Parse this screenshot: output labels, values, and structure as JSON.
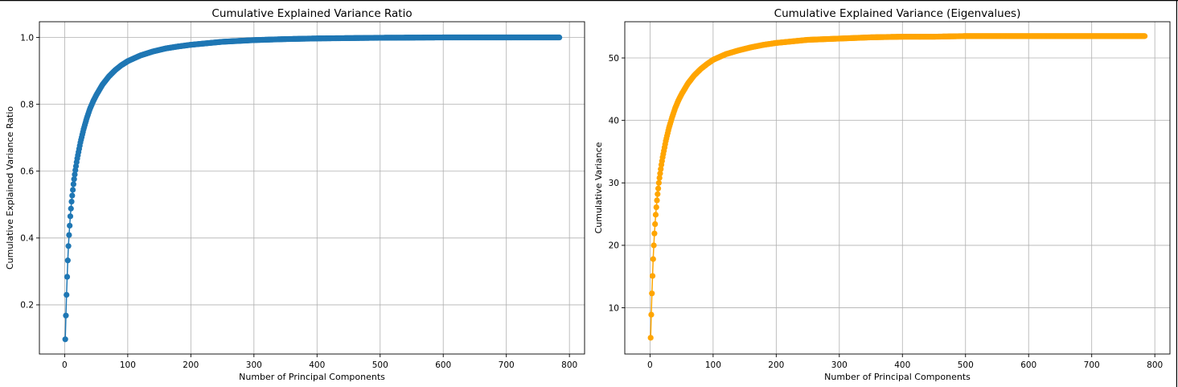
{
  "chart_data": [
    {
      "type": "line",
      "title": "Cumulative Explained Variance Ratio",
      "xlabel": "Number of Principal Components",
      "ylabel": "Cumulative Explained Variance Ratio",
      "xlim": [
        -40,
        824
      ],
      "ylim": [
        0.053,
        1.047
      ],
      "xticks": [
        0,
        100,
        200,
        300,
        400,
        500,
        600,
        700,
        800
      ],
      "yticks": [
        0.2,
        0.4,
        0.6,
        0.8,
        1.0
      ],
      "ytick_labels": [
        "0.2",
        "0.4",
        "0.6",
        "0.8",
        "1.0"
      ],
      "grid": true,
      "marker": "circle",
      "color": "#1f77b4",
      "n_components": 784,
      "series": [
        {
          "x": [
            1,
            2,
            3,
            4,
            5,
            6,
            7,
            8,
            9,
            10,
            11,
            12,
            13,
            14,
            15,
            16,
            17,
            18,
            19,
            20,
            25,
            30,
            35,
            40,
            45,
            50,
            60,
            70,
            80,
            90,
            100,
            120,
            140,
            160,
            180,
            200,
            250,
            300,
            350,
            400,
            450,
            500,
            600,
            700,
            784
          ],
          "y": [
            0.097,
            0.168,
            0.23,
            0.284,
            0.333,
            0.376,
            0.409,
            0.437,
            0.465,
            0.488,
            0.509,
            0.527,
            0.544,
            0.561,
            0.576,
            0.59,
            0.603,
            0.615,
            0.627,
            0.638,
            0.686,
            0.725,
            0.758,
            0.786,
            0.808,
            0.827,
            0.859,
            0.883,
            0.902,
            0.917,
            0.929,
            0.946,
            0.958,
            0.967,
            0.973,
            0.978,
            0.987,
            0.992,
            0.995,
            0.997,
            0.998,
            0.999,
            1.0,
            1.0,
            1.0
          ]
        }
      ]
    },
    {
      "type": "line",
      "title": "Cumulative Explained Variance (Eigenvalues)",
      "xlabel": "Number of Principal Components",
      "ylabel": "Cumulative Variance",
      "xlim": [
        -40,
        824
      ],
      "ylim": [
        2.6,
        55.8
      ],
      "xticks": [
        0,
        100,
        200,
        300,
        400,
        500,
        600,
        700,
        800
      ],
      "yticks": [
        10,
        20,
        30,
        40,
        50
      ],
      "ytick_labels": [
        "10",
        "20",
        "30",
        "40",
        "50"
      ],
      "grid": true,
      "marker": "circle",
      "color": "#ffa500",
      "n_components": 784,
      "series": [
        {
          "x": [
            1,
            2,
            3,
            4,
            5,
            6,
            7,
            8,
            9,
            10,
            11,
            12,
            13,
            14,
            15,
            16,
            17,
            18,
            19,
            20,
            25,
            30,
            35,
            40,
            45,
            50,
            60,
            70,
            80,
            90,
            100,
            120,
            140,
            160,
            180,
            200,
            250,
            300,
            350,
            400,
            450,
            500,
            600,
            700,
            784
          ],
          "y": [
            5.2,
            8.9,
            12.3,
            15.1,
            17.8,
            20.0,
            21.9,
            23.4,
            24.9,
            26.1,
            27.2,
            28.2,
            29.1,
            30.0,
            30.8,
            31.5,
            32.2,
            32.9,
            33.5,
            34.1,
            36.7,
            38.8,
            40.5,
            42.0,
            43.2,
            44.2,
            45.9,
            47.2,
            48.2,
            49.0,
            49.7,
            50.6,
            51.2,
            51.7,
            52.1,
            52.4,
            52.9,
            53.1,
            53.3,
            53.4,
            53.4,
            53.5,
            53.5,
            53.5,
            53.5
          ]
        }
      ]
    }
  ]
}
